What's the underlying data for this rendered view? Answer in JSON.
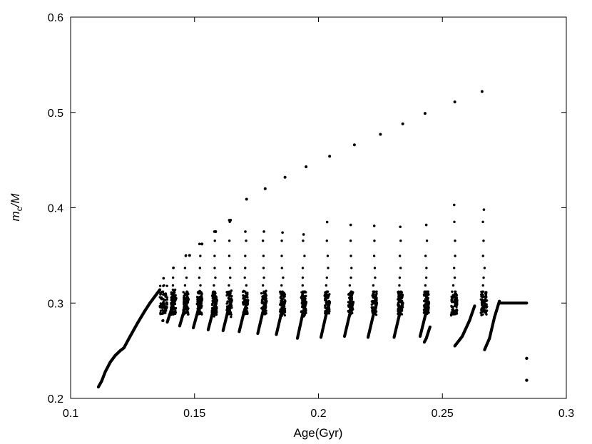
{
  "chart_data": {
    "type": "scatter",
    "title": "",
    "xlabel": "Age(Gyr)",
    "ylabel_main": "m",
    "ylabel_sub": "c",
    "ylabel_tail": "/M",
    "xlim": [
      0.1,
      0.3
    ],
    "ylim": [
      0.2,
      0.6
    ],
    "x_ticks": [
      "0.1",
      "0.15",
      "0.2",
      "0.25",
      "0.3"
    ],
    "y_ticks": [
      "0.2",
      "0.3",
      "0.4",
      "0.5",
      "0.6"
    ],
    "grid": false,
    "legend": "none",
    "marker_color": "#000000",
    "segments": [
      {
        "x": [
          0.1112,
          0.1125,
          0.114,
          0.116,
          0.118,
          0.12,
          0.1215,
          0.124,
          0.127,
          0.13,
          0.132,
          0.134,
          0.136
        ],
        "y": [
          0.212,
          0.218,
          0.228,
          0.238,
          0.245,
          0.25,
          0.253,
          0.265,
          0.279,
          0.292,
          0.3,
          0.307,
          0.314
        ]
      },
      {
        "x": [
          0.139,
          0.141,
          0.1425
        ],
        "y": [
          0.28,
          0.296,
          0.305
        ]
      },
      {
        "x": [
          0.144,
          0.146,
          0.1475
        ],
        "y": [
          0.276,
          0.294,
          0.304
        ]
      },
      {
        "x": [
          0.1495,
          0.1515,
          0.153
        ],
        "y": [
          0.274,
          0.293,
          0.304
        ]
      },
      {
        "x": [
          0.1555,
          0.1575,
          0.159
        ],
        "y": [
          0.272,
          0.292,
          0.303
        ]
      },
      {
        "x": [
          0.1615,
          0.1635,
          0.165
        ],
        "y": [
          0.271,
          0.292,
          0.303
        ]
      },
      {
        "x": [
          0.168,
          0.17,
          0.1715
        ],
        "y": [
          0.27,
          0.291,
          0.303
        ]
      },
      {
        "x": [
          0.1755,
          0.1775,
          0.179
        ],
        "y": [
          0.268,
          0.29,
          0.302
        ]
      },
      {
        "x": [
          0.183,
          0.185,
          0.1865
        ],
        "y": [
          0.267,
          0.289,
          0.302
        ]
      },
      {
        "x": [
          0.1915,
          0.1935,
          0.195
        ],
        "y": [
          0.263,
          0.287,
          0.301
        ]
      },
      {
        "x": [
          0.201,
          0.203,
          0.2045
        ],
        "y": [
          0.264,
          0.287,
          0.301
        ]
      },
      {
        "x": [
          0.2105,
          0.2125,
          0.214
        ],
        "y": [
          0.265,
          0.287,
          0.301
        ]
      },
      {
        "x": [
          0.22,
          0.222,
          0.2235
        ],
        "y": [
          0.264,
          0.286,
          0.3
        ]
      },
      {
        "x": [
          0.2305,
          0.2325,
          0.234
        ],
        "y": [
          0.264,
          0.286,
          0.3
        ]
      },
      {
        "x": [
          0.241,
          0.243,
          0.2445
        ],
        "y": [
          0.265,
          0.286,
          0.3
        ]
      },
      {
        "x": [
          0.2427,
          0.2435,
          0.245
        ],
        "y": [
          0.259,
          0.263,
          0.275
        ]
      },
      {
        "x": [
          0.255,
          0.258,
          0.261,
          0.263
        ],
        "y": [
          0.255,
          0.265,
          0.282,
          0.297
        ]
      },
      {
        "x": [
          0.267,
          0.269,
          0.271,
          0.273
        ],
        "y": [
          0.251,
          0.263,
          0.285,
          0.302
        ]
      },
      {
        "x": [
          0.273,
          0.284
        ],
        "y": [
          0.3,
          0.3
        ]
      }
    ],
    "clusters": [
      {
        "x": [
          0.136,
          0.139
        ],
        "spread_y": [
          0.274,
          0.318
        ],
        "cap": 0.326
      },
      {
        "x": [
          0.1405,
          0.1425
        ],
        "spread_y": [
          0.282,
          0.314
        ],
        "cap": 0.337
      },
      {
        "x": [
          0.1455,
          0.1475
        ],
        "spread_y": [
          0.283,
          0.313
        ],
        "cap": 0.35
      },
      {
        "x": [
          0.151,
          0.153
        ],
        "spread_y": [
          0.284,
          0.313
        ],
        "cap": 0.362
      },
      {
        "x": [
          0.157,
          0.159
        ],
        "spread_y": [
          0.284,
          0.313
        ],
        "cap": 0.375
      },
      {
        "x": [
          0.163,
          0.165
        ],
        "spread_y": [
          0.284,
          0.313
        ],
        "cap": 0.387
      },
      {
        "x": [
          0.1695,
          0.1715
        ],
        "spread_y": [
          0.284,
          0.313
        ],
        "cap": 0.375
      },
      {
        "x": [
          0.177,
          0.179
        ],
        "spread_y": [
          0.284,
          0.313
        ],
        "cap": 0.375
      },
      {
        "x": [
          0.1845,
          0.1865
        ],
        "spread_y": [
          0.284,
          0.312
        ],
        "cap": 0.374
      },
      {
        "x": [
          0.193,
          0.195
        ],
        "spread_y": [
          0.284,
          0.312
        ],
        "cap": 0.372
      },
      {
        "x": [
          0.2025,
          0.2045
        ],
        "spread_y": [
          0.284,
          0.312
        ],
        "cap": 0.385
      },
      {
        "x": [
          0.212,
          0.214
        ],
        "spread_y": [
          0.284,
          0.312
        ],
        "cap": 0.382
      },
      {
        "x": [
          0.2215,
          0.2235
        ],
        "spread_y": [
          0.284,
          0.312
        ],
        "cap": 0.381
      },
      {
        "x": [
          0.232,
          0.234
        ],
        "spread_y": [
          0.284,
          0.312
        ],
        "cap": 0.38
      },
      {
        "x": [
          0.2425,
          0.2445
        ],
        "spread_y": [
          0.284,
          0.312
        ],
        "cap": 0.382
      },
      {
        "x": [
          0.2535,
          0.256
        ],
        "spread_y": [
          0.284,
          0.312
        ],
        "cap": 0.403
      },
      {
        "x": [
          0.2655,
          0.268
        ],
        "spread_y": [
          0.284,
          0.312
        ],
        "cap": 0.398
      }
    ],
    "envelope_points": [
      {
        "x": 0.148,
        "y": 0.35
      },
      {
        "x": 0.153,
        "y": 0.362
      },
      {
        "x": 0.1585,
        "y": 0.375
      },
      {
        "x": 0.1645,
        "y": 0.387
      },
      {
        "x": 0.171,
        "y": 0.409
      },
      {
        "x": 0.1785,
        "y": 0.42
      },
      {
        "x": 0.1865,
        "y": 0.432
      },
      {
        "x": 0.195,
        "y": 0.443
      },
      {
        "x": 0.2045,
        "y": 0.454
      },
      {
        "x": 0.2145,
        "y": 0.466
      },
      {
        "x": 0.225,
        "y": 0.477
      },
      {
        "x": 0.234,
        "y": 0.488
      },
      {
        "x": 0.243,
        "y": 0.499
      },
      {
        "x": 0.255,
        "y": 0.511
      },
      {
        "x": 0.266,
        "y": 0.522
      }
    ],
    "isolated_points": [
      {
        "x": 0.284,
        "y": 0.242
      },
      {
        "x": 0.284,
        "y": 0.219
      }
    ]
  }
}
